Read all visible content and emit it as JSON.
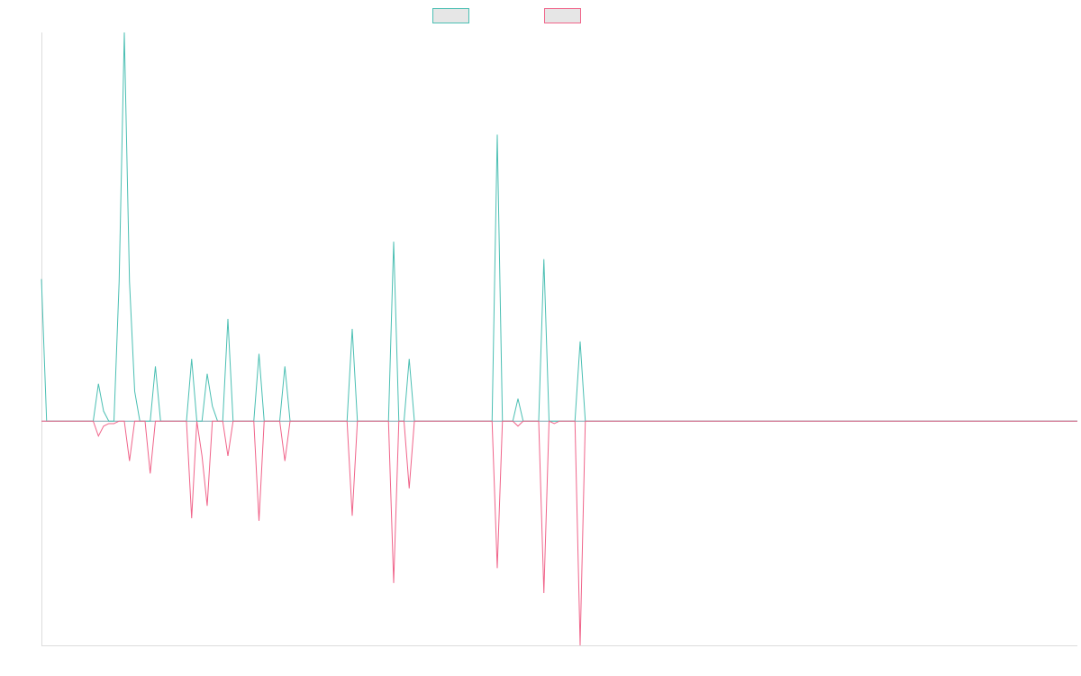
{
  "colors": {
    "series_up": "#4bbfb3",
    "series_down": "#f0648a",
    "legend_fill": "#e6e6e6",
    "axis": "#dcdcdc"
  },
  "chart_data": {
    "type": "line",
    "title": "",
    "xlabel": "",
    "ylabel": "",
    "grid": false,
    "legend": "top-center",
    "xlim": [
      0,
      200
    ],
    "ylim": [
      -450,
      780
    ],
    "series": [
      {
        "color": "#4bbfb3",
        "points": [
          [
            0,
            285
          ],
          [
            1,
            0
          ],
          [
            10,
            0
          ],
          [
            11,
            75
          ],
          [
            12,
            20
          ],
          [
            13,
            0
          ],
          [
            14,
            0
          ],
          [
            15,
            280
          ],
          [
            16,
            780
          ],
          [
            17,
            280
          ],
          [
            18,
            60
          ],
          [
            19,
            0
          ],
          [
            20,
            0
          ],
          [
            21,
            0
          ],
          [
            22,
            110
          ],
          [
            23,
            0
          ],
          [
            28,
            0
          ],
          [
            29,
            125
          ],
          [
            30,
            0
          ],
          [
            31,
            0
          ],
          [
            32,
            95
          ],
          [
            33,
            30
          ],
          [
            34,
            0
          ],
          [
            35,
            0
          ],
          [
            36,
            205
          ],
          [
            37,
            0
          ],
          [
            41,
            0
          ],
          [
            42,
            135
          ],
          [
            43,
            0
          ],
          [
            46,
            0
          ],
          [
            47,
            110
          ],
          [
            48,
            0
          ],
          [
            59,
            0
          ],
          [
            60,
            185
          ],
          [
            61,
            0
          ],
          [
            67,
            0
          ],
          [
            68,
            360
          ],
          [
            69,
            0
          ],
          [
            70,
            0
          ],
          [
            71,
            125
          ],
          [
            72,
            0
          ],
          [
            87,
            0
          ],
          [
            88,
            575
          ],
          [
            89,
            0
          ],
          [
            91,
            0
          ],
          [
            92,
            45
          ],
          [
            93,
            0
          ],
          [
            96,
            0
          ],
          [
            97,
            325
          ],
          [
            98,
            0
          ],
          [
            103,
            0
          ],
          [
            104,
            160
          ],
          [
            105,
            0
          ],
          [
            200,
            0
          ]
        ]
      },
      {
        "color": "#f0648a",
        "points": [
          [
            0,
            0
          ],
          [
            10,
            0
          ],
          [
            11,
            -30
          ],
          [
            12,
            -10
          ],
          [
            13,
            -5
          ],
          [
            14,
            -5
          ],
          [
            15,
            0
          ],
          [
            16,
            0
          ],
          [
            17,
            -80
          ],
          [
            18,
            0
          ],
          [
            20,
            0
          ],
          [
            21,
            -105
          ],
          [
            22,
            0
          ],
          [
            28,
            0
          ],
          [
            29,
            -195
          ],
          [
            30,
            0
          ],
          [
            31,
            -70
          ],
          [
            32,
            -170
          ],
          [
            33,
            0
          ],
          [
            35,
            0
          ],
          [
            36,
            -70
          ],
          [
            37,
            0
          ],
          [
            41,
            0
          ],
          [
            42,
            -200
          ],
          [
            43,
            0
          ],
          [
            46,
            0
          ],
          [
            47,
            -80
          ],
          [
            48,
            0
          ],
          [
            59,
            0
          ],
          [
            60,
            -190
          ],
          [
            61,
            0
          ],
          [
            67,
            0
          ],
          [
            68,
            -325
          ],
          [
            69,
            0
          ],
          [
            70,
            0
          ],
          [
            71,
            -135
          ],
          [
            72,
            0
          ],
          [
            87,
            0
          ],
          [
            88,
            -295
          ],
          [
            89,
            0
          ],
          [
            91,
            0
          ],
          [
            92,
            -10
          ],
          [
            93,
            0
          ],
          [
            96,
            0
          ],
          [
            97,
            -345
          ],
          [
            98,
            0
          ],
          [
            99,
            -5
          ],
          [
            100,
            0
          ],
          [
            103,
            0
          ],
          [
            104,
            -450
          ],
          [
            105,
            0
          ],
          [
            200,
            0
          ]
        ]
      }
    ]
  }
}
